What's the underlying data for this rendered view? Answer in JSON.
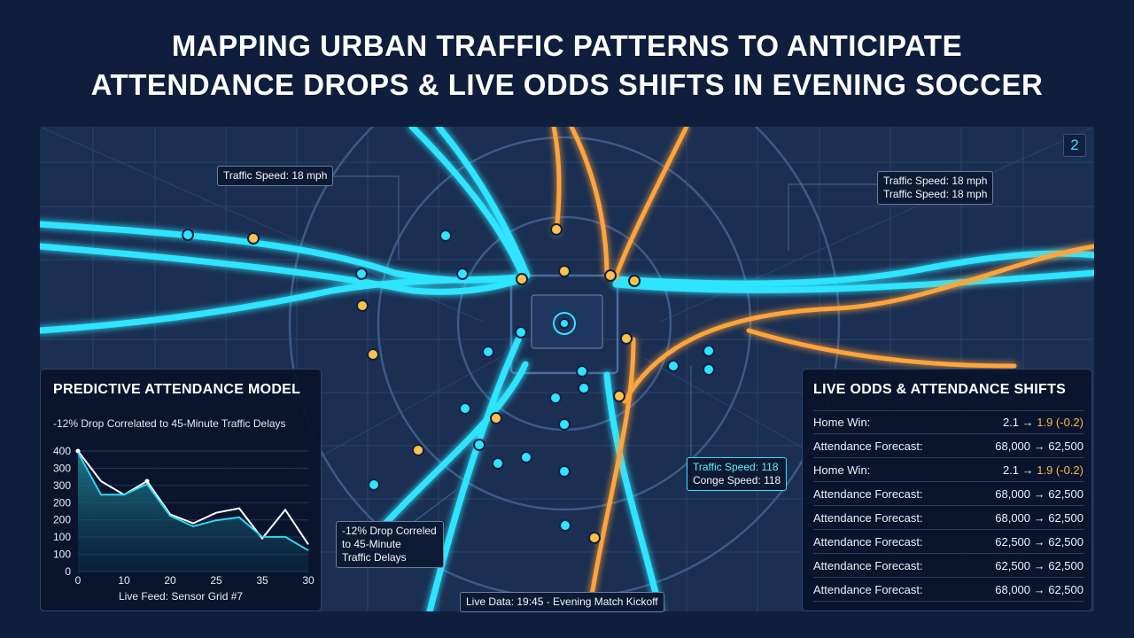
{
  "title": {
    "line1": "MAPPING URBAN TRAFFIC PATTERNS TO ANTICIPATE",
    "line2": "ATTENDANCE DROPS & LIVE ODDS SHIFTS IN EVENING SOCCER"
  },
  "map": {
    "page_badge": "2",
    "tags": {
      "traffic_left": "Traffic Speed: 18 mph",
      "traffic_right_1": "Traffic Speed: 18 mph",
      "traffic_right_2": "Traffic Speed: 18 mph",
      "traffic_mid_1": "Traffic Speed: 118",
      "traffic_mid_2": "Conge Speed: 118",
      "drop_1": "-12% Drop Correled",
      "drop_2": "to 45-Minute",
      "drop_3": "Traffic Delays",
      "kickoff": "Live Data: 19:45 - Evening Match Kickoff"
    },
    "colors": {
      "cyan": "#2fe4ff",
      "orange": "#ffa43a",
      "background": "#1b2f52"
    }
  },
  "attendance_model": {
    "title": "PREDICTIVE ATTENDANCE MODEL",
    "subtitle": "-12% Drop Correlated to 45-Minute Traffic Delays",
    "feed": "Live Feed: Sensor Grid #7",
    "chart_data": {
      "type": "line",
      "x_ticks": [
        "0",
        "10",
        "20",
        "25",
        "35",
        "30"
      ],
      "y_ticks": [
        "400",
        "300",
        "300",
        "200",
        "200",
        "100",
        "100",
        "0"
      ],
      "series": [
        {
          "x": [
            0,
            5,
            10,
            15,
            20,
            25,
            30,
            35,
            40,
            45,
            50
          ],
          "y": [
            400,
            300,
            255,
            300,
            190,
            160,
            195,
            210,
            110,
            205,
            90
          ]
        },
        {
          "x": [
            0,
            5,
            10,
            15,
            20,
            25,
            30,
            35,
            40,
            45,
            50
          ],
          "y": [
            395,
            255,
            255,
            290,
            185,
            150,
            170,
            180,
            115,
            115,
            70
          ]
        }
      ],
      "xlim": [
        0,
        50
      ],
      "ylim": [
        0,
        400
      ]
    }
  },
  "odds_panel": {
    "title": "LIVE ODDS & ATTENDANCE SHIFTS",
    "rows": [
      {
        "label": "Home Win:",
        "from": "2.1 → ",
        "to": "1.9 (-0.2)"
      },
      {
        "label": "Attendance Forecast:",
        "from": "68,000 → 62,500",
        "to": ""
      },
      {
        "label": "Home Win:",
        "from": "2.1 → ",
        "to": "1.9 (-0.2)"
      },
      {
        "label": "Attendance Forecast:",
        "from": "68,000 → 62,500",
        "to": ""
      },
      {
        "label": "Attendance Forecast:",
        "from": "68,000 → 62,500",
        "to": ""
      },
      {
        "label": "Attendance Forecast:",
        "from": "62,500 → 62,500",
        "to": ""
      },
      {
        "label": "Attendance Forecast:",
        "from": "62,500 → 62,500",
        "to": ""
      },
      {
        "label": "Attendance Forecast:",
        "from": "68,000 → 62,500",
        "to": ""
      }
    ]
  }
}
